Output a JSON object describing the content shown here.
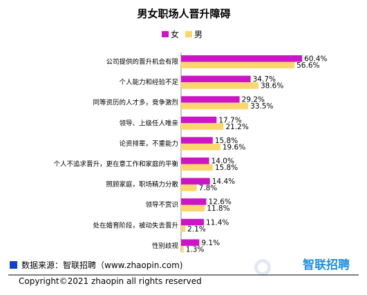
{
  "chart_data": {
    "type": "bar",
    "orientation": "horizontal",
    "title": "男女职场人晋升障碍",
    "legend_placement": "top-right",
    "categories": [
      "公司提供的晋升机会有限",
      "个人能力和经验不足",
      "同等资历的人才多，竞争激烈",
      "领导、上级任人唯亲",
      "论资排辈，不重能力",
      "个人不追求晋升，更在意工作和家庭的平衡",
      "照顾家庭，职场精力分散",
      "领导不赏识",
      "处在婚育阶段，被动失去晋升",
      "性别歧视"
    ],
    "series": [
      {
        "name": "女",
        "color": "#cc16c5",
        "values": [
          60.4,
          34.7,
          29.2,
          17.7,
          15.8,
          14.0,
          14.4,
          12.6,
          11.4,
          9.1
        ],
        "labels": [
          "60.4%",
          "34.7%",
          "29.2%",
          "17.7%",
          "15.8%",
          "14.0%",
          "14.4%",
          "12.6%",
          "11.4%",
          "9.1%"
        ]
      },
      {
        "name": "男",
        "color": "#fbd66f",
        "values": [
          56.6,
          38.6,
          33.5,
          21.2,
          19.6,
          15.8,
          7.8,
          11.8,
          2.1,
          1.3
        ],
        "labels": [
          "56.6%",
          "38.6%",
          "33.5%",
          "21.2%",
          "19.6%",
          "15.8%",
          "7.8%",
          "11.8%",
          "2.1%",
          "1.3%"
        ]
      }
    ],
    "xlim": [
      0,
      70
    ],
    "grid": false
  },
  "footer": {
    "source": "数据来源：智联招聘（www.zhaopin.com)",
    "copyright": "Copyright©2021 zhaopin all rights reserved",
    "source_marker_color": "#1040c8"
  },
  "watermark": {
    "text": "智联招聘",
    "icon": "zhaopin-logo-icon"
  }
}
